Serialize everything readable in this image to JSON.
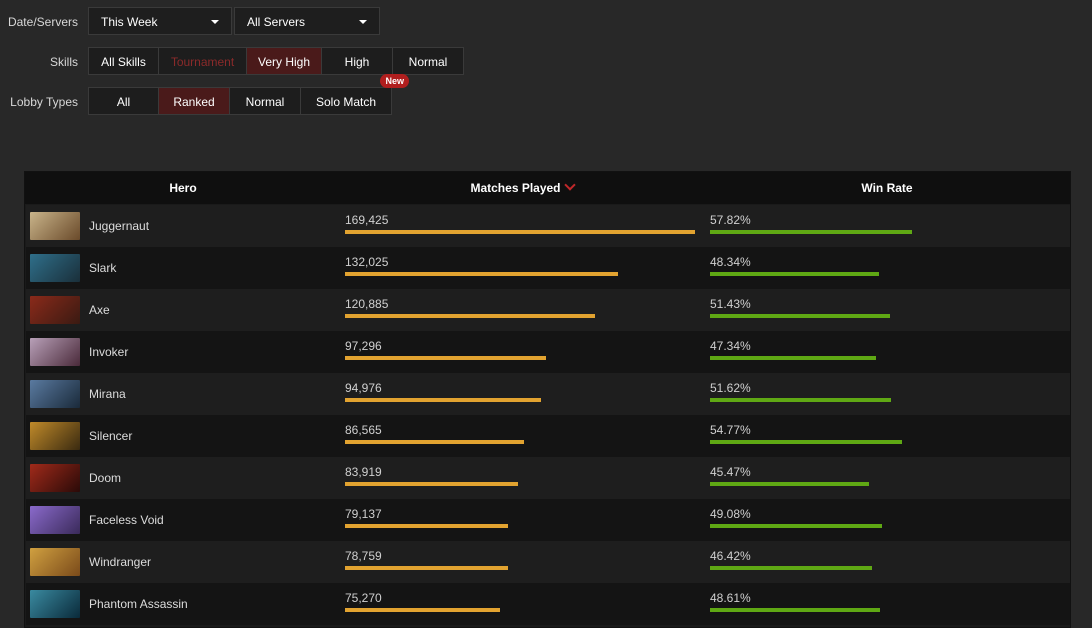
{
  "filters": {
    "date_label": "Date/Servers",
    "date_select": "This Week",
    "server_select": "All Servers",
    "skills_label": "Skills",
    "skills": [
      "All Skills",
      "Tournament",
      "Very High",
      "High",
      "Normal"
    ],
    "lobby_label": "Lobby Types",
    "lobby": [
      "All",
      "Ranked",
      "Normal",
      "Solo Match"
    ],
    "new_badge": "New"
  },
  "table": {
    "headers": {
      "hero": "Hero",
      "matches": "Matches Played",
      "winrate": "Win Rate"
    },
    "sort_icon": "chevron-down-icon",
    "rows": [
      {
        "hero": "Juggernaut",
        "matches": "169,425",
        "matches_value": 169425,
        "winrate": "57.82%",
        "winrate_value": 57.82
      },
      {
        "hero": "Slark",
        "matches": "132,025",
        "matches_value": 132025,
        "winrate": "48.34%",
        "winrate_value": 48.34
      },
      {
        "hero": "Axe",
        "matches": "120,885",
        "matches_value": 120885,
        "winrate": "51.43%",
        "winrate_value": 51.43
      },
      {
        "hero": "Invoker",
        "matches": "97,296",
        "matches_value": 97296,
        "winrate": "47.34%",
        "winrate_value": 47.34
      },
      {
        "hero": "Mirana",
        "matches": "94,976",
        "matches_value": 94976,
        "winrate": "51.62%",
        "winrate_value": 51.62
      },
      {
        "hero": "Silencer",
        "matches": "86,565",
        "matches_value": 86565,
        "winrate": "54.77%",
        "winrate_value": 54.77
      },
      {
        "hero": "Doom",
        "matches": "83,919",
        "matches_value": 83919,
        "winrate": "45.47%",
        "winrate_value": 45.47
      },
      {
        "hero": "Faceless Void",
        "matches": "79,137",
        "matches_value": 79137,
        "winrate": "49.08%",
        "winrate_value": 49.08
      },
      {
        "hero": "Windranger",
        "matches": "78,759",
        "matches_value": 78759,
        "winrate": "46.42%",
        "winrate_value": 46.42
      },
      {
        "hero": "Phantom Assassin",
        "matches": "75,270",
        "matches_value": 75270,
        "winrate": "48.61%",
        "winrate_value": 48.61
      }
    ]
  },
  "colors": {
    "matches_bar": "#e2a330",
    "winrate_bar": "#5fa814",
    "active_button": "#4a1a1a",
    "accent_red": "#c0282a"
  }
}
